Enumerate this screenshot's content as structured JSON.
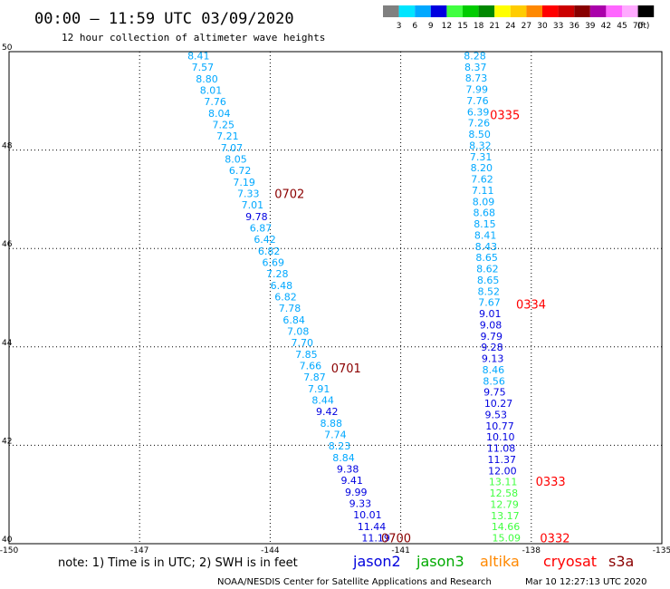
{
  "header": {
    "title": "00:00 – 11:59 UTC 03/09/2020",
    "subtitle": "12 hour collection of altimeter wave heights"
  },
  "legend": {
    "unit": "(ft)",
    "swatches": [
      {
        "label": "3",
        "color": "#808080"
      },
      {
        "label": "6",
        "color": "#00e5ff"
      },
      {
        "label": "9",
        "color": "#00a8ff"
      },
      {
        "label": "12",
        "color": "#0000e0"
      },
      {
        "label": "15",
        "color": "#40ff40"
      },
      {
        "label": "18",
        "color": "#00cc00"
      },
      {
        "label": "21",
        "color": "#008800"
      },
      {
        "label": "24",
        "color": "#ffff00"
      },
      {
        "label": "27",
        "color": "#ffcc00"
      },
      {
        "label": "30",
        "color": "#ff8800"
      },
      {
        "label": "33",
        "color": "#ff0000"
      },
      {
        "label": "36",
        "color": "#cc0000"
      },
      {
        "label": "39",
        "color": "#880000"
      },
      {
        "label": "42",
        "color": "#aa00aa"
      },
      {
        "label": "45",
        "color": "#ff66ff"
      },
      {
        "label": "70",
        "color": "#ffaaff"
      },
      {
        "label": "",
        "color": "#000000"
      }
    ]
  },
  "footer": {
    "note": "note: 1) Time is in UTC; 2) SWH is in feet",
    "satellites": [
      {
        "name": "jason2",
        "color": "#0000dd"
      },
      {
        "name": "jason3",
        "color": "#00aa00"
      },
      {
        "name": "altika",
        "color": "#ff8800"
      },
      {
        "name": "cryosat",
        "color": "#ff0000"
      },
      {
        "name": "s3a",
        "color": "#8b0000"
      }
    ],
    "credit": "NOAA/NESDIS Center for Satellite Applications and Research",
    "timestamp": "Mar 10 12:27:13 UTC 2020"
  },
  "chart_data": {
    "type": "scatter",
    "xlim": [
      -150,
      -135
    ],
    "ylim": [
      40,
      50
    ],
    "x_ticks": [
      "-150",
      "-147",
      "-144",
      "-141",
      "-138",
      "-135"
    ],
    "y_ticks": [
      "40",
      "42",
      "44",
      "46",
      "48",
      "50"
    ],
    "grid": true,
    "tracks": [
      {
        "satellite": "s3a",
        "label": "0702",
        "x": -143.9,
        "y": 47.1
      },
      {
        "satellite": "s3a",
        "label": "0701",
        "x": -142.6,
        "y": 43.55
      },
      {
        "satellite": "s3a",
        "label": "0700",
        "x": -141.45,
        "y": 40.1
      },
      {
        "satellite": "cryosat",
        "label": "0335",
        "x": -138.95,
        "y": 48.7
      },
      {
        "satellite": "cryosat",
        "label": "0334",
        "x": -138.35,
        "y": 44.85
      },
      {
        "satellite": "cryosat",
        "label": "0333",
        "x": -137.9,
        "y": 41.25
      },
      {
        "satellite": "cryosat",
        "label": "0332",
        "x": -137.8,
        "y": 40.1
      }
    ],
    "tracks_points": [
      {
        "name": "left",
        "x_start": -145.9,
        "x_end": -141.9,
        "y_start": 49.9,
        "y_end": 40.1,
        "values": [
          "8.41",
          "7.57",
          "8.80",
          "8.01",
          "7.76",
          "8.04",
          "7.25",
          "7.21",
          "7.07",
          "8.05",
          "6.72",
          "7.19",
          "7.33",
          "7.01",
          "9.78",
          "6.87",
          "6.42",
          "6.82",
          "6.69",
          "7.28",
          "6.48",
          "6.82",
          "7.78",
          "6.84",
          "7.08",
          "7.70",
          "7.85",
          "7.66",
          "7.87",
          "7.91",
          "8.44",
          "9.42",
          "8.88",
          "7.74",
          "8.23",
          "8.84",
          "9.38",
          "9.41",
          "9.99",
          "9.33",
          "10.01",
          "11.44",
          "11.19"
        ],
        "colors": [
          "#00a8ff",
          "#00a8ff",
          "#00a8ff",
          "#00a8ff",
          "#00a8ff",
          "#00a8ff",
          "#00a8ff",
          "#00a8ff",
          "#00a8ff",
          "#00a8ff",
          "#00a8ff",
          "#00a8ff",
          "#00a8ff",
          "#00a8ff",
          "#0000e0",
          "#00a8ff",
          "#00a8ff",
          "#00a8ff",
          "#00a8ff",
          "#00a8ff",
          "#00a8ff",
          "#00a8ff",
          "#00a8ff",
          "#00a8ff",
          "#00a8ff",
          "#00a8ff",
          "#00a8ff",
          "#00a8ff",
          "#00a8ff",
          "#00a8ff",
          "#00a8ff",
          "#0000e0",
          "#00a8ff",
          "#00a8ff",
          "#00a8ff",
          "#00a8ff",
          "#0000e0",
          "#0000e0",
          "#0000e0",
          "#0000e0",
          "#0000e0",
          "#0000e0",
          "#0000e0"
        ]
      },
      {
        "name": "right",
        "x_start": -139.55,
        "x_end": -138.9,
        "y_start": 49.9,
        "y_end": 40.1,
        "values": [
          "8.28",
          "8.37",
          "8.73",
          "7.99",
          "7.76",
          "6.39",
          "7.26",
          "8.50",
          "8.32",
          "7.31",
          "8.20",
          "7.62",
          "7.11",
          "8.09",
          "8.68",
          "8.15",
          "8.41",
          "8.43",
          "8.65",
          "8.62",
          "8.65",
          "8.52",
          "7.67",
          "9.01",
          "9.08",
          "9.79",
          "9.28",
          "9.13",
          "8.46",
          "8.56",
          "9.75",
          "10.27",
          "9.53",
          "10.77",
          "10.10",
          "11.08",
          "11.37",
          "12.00",
          "13.11",
          "12.58",
          "12.79",
          "13.17",
          "14.66",
          "15.09"
        ],
        "colors": [
          "#00a8ff",
          "#00a8ff",
          "#00a8ff",
          "#00a8ff",
          "#00a8ff",
          "#00a8ff",
          "#00a8ff",
          "#00a8ff",
          "#00a8ff",
          "#00a8ff",
          "#00a8ff",
          "#00a8ff",
          "#00a8ff",
          "#00a8ff",
          "#00a8ff",
          "#00a8ff",
          "#00a8ff",
          "#00a8ff",
          "#00a8ff",
          "#00a8ff",
          "#00a8ff",
          "#00a8ff",
          "#00a8ff",
          "#0000e0",
          "#0000e0",
          "#0000e0",
          "#0000e0",
          "#0000e0",
          "#00a8ff",
          "#00a8ff",
          "#0000e0",
          "#0000e0",
          "#0000e0",
          "#0000e0",
          "#0000e0",
          "#0000e0",
          "#0000e0",
          "#0000e0",
          "#40ff40",
          "#40ff40",
          "#40ff40",
          "#40ff40",
          "#40ff40",
          "#40ff40"
        ]
      }
    ]
  }
}
